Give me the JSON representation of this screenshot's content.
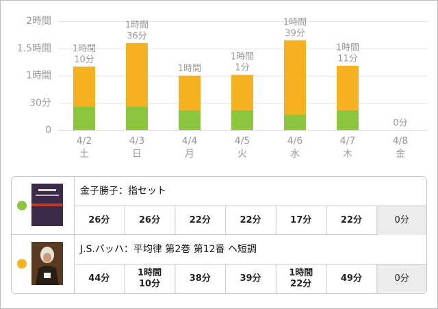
{
  "chart_data": {
    "type": "bar",
    "stacked": true,
    "categories": [
      "4/2",
      "4/3",
      "4/4",
      "4/5",
      "4/6",
      "4/7",
      "4/8"
    ],
    "weekdays": [
      "土",
      "日",
      "月",
      "火",
      "水",
      "木",
      "金"
    ],
    "ylim": [
      0,
      120
    ],
    "yticks": [
      0,
      {
        "value": 30,
        "label": "30分"
      },
      {
        "value": 60,
        "label": "1時間"
      },
      {
        "value": 90,
        "label": "1.5時間"
      },
      {
        "value": 120,
        "label": "2時間"
      }
    ],
    "grid": true,
    "total_labels": [
      [
        "1時間",
        "10分"
      ],
      [
        "1時間",
        "36分"
      ],
      [
        "1時間"
      ],
      [
        "1時間",
        "1分"
      ],
      [
        "1時間",
        "39分"
      ],
      [
        "1時間",
        "11分"
      ],
      [
        "0分"
      ]
    ],
    "series": [
      {
        "name": "金子勝子：指セット",
        "color": "#8cc63f",
        "values": [
          26,
          26,
          22,
          22,
          17,
          22,
          0
        ],
        "value_labels": [
          [
            "26分"
          ],
          [
            "26分"
          ],
          [
            "22分"
          ],
          [
            "22分"
          ],
          [
            "17分"
          ],
          [
            "22分"
          ],
          [
            "0分"
          ]
        ]
      },
      {
        "name": "J.S.バッハ：平均律 第2巻 第12番 ヘ短調",
        "color": "#f5b120",
        "values": [
          44,
          70,
          38,
          39,
          82,
          49,
          0
        ],
        "value_labels": [
          [
            "44分"
          ],
          [
            "1時間",
            "10分"
          ],
          [
            "38分"
          ],
          [
            "39分"
          ],
          [
            "1時間",
            "22分"
          ],
          [
            "49分"
          ],
          [
            "0分"
          ]
        ]
      }
    ]
  }
}
